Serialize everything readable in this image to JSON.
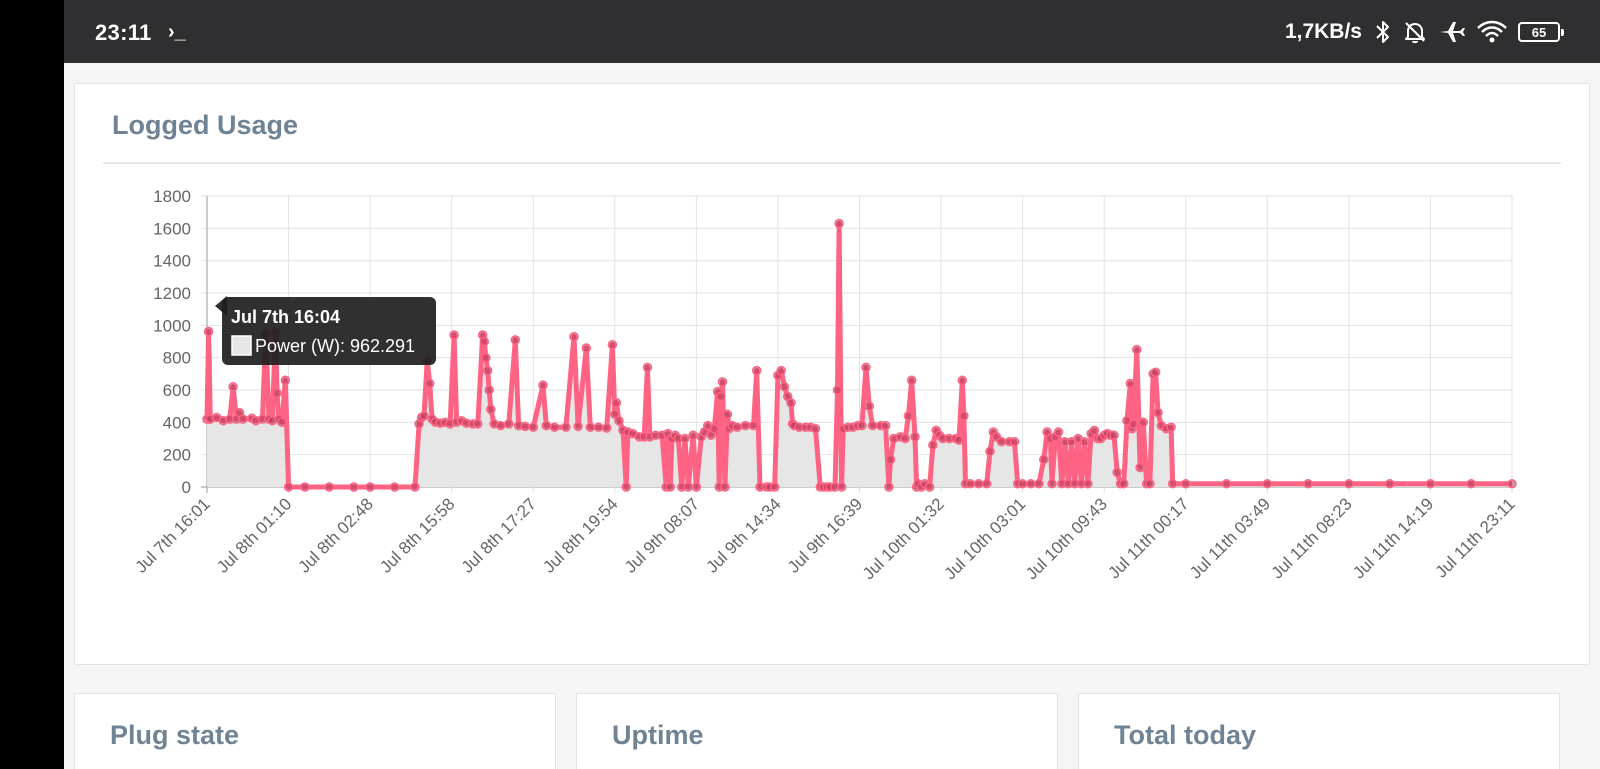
{
  "status_bar": {
    "time": "23:11",
    "prompt_glyph": "›_",
    "net_speed": "1,7KB/s",
    "battery": "65",
    "icons": [
      "bluetooth-icon",
      "notifications-off-icon",
      "airplane-icon",
      "wifi-icon",
      "battery-icon"
    ]
  },
  "cards": {
    "logged_usage": "Logged Usage",
    "plug_state": "Plug state",
    "uptime": "Uptime",
    "total_today": "Total today"
  },
  "tooltip": {
    "title": "Jul 7th 16:04",
    "label": "Power (W): 962.291"
  },
  "colors": {
    "line": "#ff6384",
    "fill": "#e6e6e6",
    "title": "#6f8394",
    "statusbar": "#2f2f31"
  },
  "chart_data": {
    "type": "line",
    "x_ticks": [
      "Jul 7th 16:01",
      "Jul 8th 01:10",
      "Jul 8th 02:48",
      "Jul 8th 15:58",
      "Jul 8th 17:27",
      "Jul 8th 19:54",
      "Jul 9th 08:07",
      "Jul 9th 14:34",
      "Jul 9th 16:39",
      "Jul 10th 01:32",
      "Jul 10th 03:01",
      "Jul 10th 09:43",
      "Jul 11th 00:17",
      "Jul 11th 03:49",
      "Jul 11th 08:23",
      "Jul 11th 14:19",
      "Jul 11th 23:11"
    ],
    "y_ticks": [
      "0",
      "200",
      "400",
      "600",
      "800",
      "1000",
      "1200",
      "1400",
      "1600",
      "1800"
    ],
    "ylim": [
      0,
      1800
    ],
    "grid": true,
    "fill": true,
    "series": [
      {
        "name": "Power (W)",
        "values": [
          [
            0.0,
            420
          ],
          [
            0.02,
            962
          ],
          [
            0.04,
            420
          ],
          [
            0.12,
            430
          ],
          [
            0.2,
            410
          ],
          [
            0.28,
            420
          ],
          [
            0.32,
            620
          ],
          [
            0.36,
            420
          ],
          [
            0.4,
            460
          ],
          [
            0.44,
            420
          ],
          [
            0.55,
            425
          ],
          [
            0.6,
            410
          ],
          [
            0.68,
            420
          ],
          [
            0.72,
            950
          ],
          [
            0.76,
            420
          ],
          [
            0.8,
            410
          ],
          [
            0.84,
            960
          ],
          [
            0.86,
            580
          ],
          [
            0.88,
            420
          ],
          [
            0.92,
            400
          ],
          [
            0.96,
            660
          ],
          [
            1.0,
            0
          ],
          [
            1.2,
            0
          ],
          [
            1.5,
            0
          ],
          [
            1.8,
            0
          ],
          [
            2.0,
            0
          ],
          [
            2.3,
            0
          ],
          [
            2.55,
            0
          ],
          [
            2.6,
            390
          ],
          [
            2.63,
            430
          ],
          [
            2.66,
            440
          ],
          [
            2.7,
            780
          ],
          [
            2.73,
            640
          ],
          [
            2.76,
            420
          ],
          [
            2.8,
            400
          ],
          [
            2.86,
            395
          ],
          [
            2.92,
            400
          ],
          [
            2.98,
            390
          ],
          [
            3.03,
            940
          ],
          [
            3.06,
            400
          ],
          [
            3.12,
            410
          ],
          [
            3.18,
            395
          ],
          [
            3.26,
            390
          ],
          [
            3.32,
            390
          ],
          [
            3.38,
            940
          ],
          [
            3.4,
            900
          ],
          [
            3.42,
            800
          ],
          [
            3.44,
            720
          ],
          [
            3.46,
            600
          ],
          [
            3.48,
            480
          ],
          [
            3.52,
            390
          ],
          [
            3.6,
            380
          ],
          [
            3.7,
            390
          ],
          [
            3.78,
            910
          ],
          [
            3.82,
            380
          ],
          [
            3.9,
            375
          ],
          [
            4.0,
            370
          ],
          [
            4.12,
            630
          ],
          [
            4.16,
            380
          ],
          [
            4.26,
            370
          ],
          [
            4.4,
            370
          ],
          [
            4.5,
            930
          ],
          [
            4.55,
            375
          ],
          [
            4.65,
            860
          ],
          [
            4.7,
            370
          ],
          [
            4.8,
            370
          ],
          [
            4.9,
            365
          ],
          [
            4.97,
            880
          ],
          [
            5.0,
            450
          ],
          [
            5.02,
            520
          ],
          [
            5.05,
            410
          ],
          [
            5.1,
            350
          ],
          [
            5.14,
            0
          ],
          [
            5.16,
            340
          ],
          [
            5.22,
            330
          ],
          [
            5.3,
            310
          ],
          [
            5.36,
            310
          ],
          [
            5.4,
            740
          ],
          [
            5.43,
            310
          ],
          [
            5.5,
            320
          ],
          [
            5.58,
            320
          ],
          [
            5.63,
            0
          ],
          [
            5.65,
            330
          ],
          [
            5.68,
            0
          ],
          [
            5.7,
            300
          ],
          [
            5.74,
            320
          ],
          [
            5.78,
            300
          ],
          [
            5.82,
            0
          ],
          [
            5.86,
            300
          ],
          [
            5.9,
            0
          ],
          [
            5.96,
            320
          ],
          [
            6.0,
            0
          ],
          [
            6.06,
            310
          ],
          [
            6.1,
            340
          ],
          [
            6.14,
            380
          ],
          [
            6.18,
            320
          ],
          [
            6.22,
            360
          ],
          [
            6.26,
            590
          ],
          [
            6.28,
            0
          ],
          [
            6.3,
            560
          ],
          [
            6.32,
            650
          ],
          [
            6.35,
            0
          ],
          [
            6.38,
            450
          ],
          [
            6.4,
            360
          ],
          [
            6.44,
            380
          ],
          [
            6.5,
            370
          ],
          [
            6.6,
            380
          ],
          [
            6.7,
            380
          ],
          [
            6.74,
            720
          ],
          [
            6.78,
            0
          ],
          [
            6.86,
            0
          ],
          [
            6.9,
            0
          ],
          [
            6.96,
            0
          ],
          [
            7.0,
            690
          ],
          [
            7.04,
            720
          ],
          [
            7.08,
            620
          ],
          [
            7.12,
            560
          ],
          [
            7.16,
            520
          ],
          [
            7.18,
            390
          ],
          [
            7.2,
            380
          ],
          [
            7.26,
            370
          ],
          [
            7.34,
            370
          ],
          [
            7.4,
            370
          ],
          [
            7.46,
            360
          ],
          [
            7.52,
            0
          ],
          [
            7.56,
            0
          ],
          [
            7.6,
            0
          ],
          [
            7.64,
            0
          ],
          [
            7.7,
            0
          ],
          [
            7.73,
            600
          ],
          [
            7.75,
            1630
          ],
          [
            7.78,
            0
          ],
          [
            7.8,
            360
          ],
          [
            7.86,
            370
          ],
          [
            7.92,
            370
          ],
          [
            7.98,
            380
          ],
          [
            8.03,
            380
          ],
          [
            8.08,
            740
          ],
          [
            8.12,
            500
          ],
          [
            8.16,
            380
          ],
          [
            8.26,
            380
          ],
          [
            8.32,
            380
          ],
          [
            8.36,
            0
          ],
          [
            8.38,
            170
          ],
          [
            8.42,
            300
          ],
          [
            8.5,
            310
          ],
          [
            8.56,
            300
          ],
          [
            8.6,
            440
          ],
          [
            8.64,
            660
          ],
          [
            8.68,
            310
          ],
          [
            8.7,
            0
          ],
          [
            8.72,
            20
          ],
          [
            8.76,
            0
          ],
          [
            8.8,
            20
          ],
          [
            8.86,
            0
          ],
          [
            8.9,
            260
          ],
          [
            8.94,
            350
          ],
          [
            8.98,
            320
          ],
          [
            9.02,
            300
          ],
          [
            9.1,
            300
          ],
          [
            9.18,
            300
          ],
          [
            9.22,
            290
          ],
          [
            9.26,
            660
          ],
          [
            9.28,
            440
          ],
          [
            9.3,
            20
          ],
          [
            9.36,
            20
          ],
          [
            9.46,
            20
          ],
          [
            9.56,
            20
          ],
          [
            9.6,
            220
          ],
          [
            9.64,
            340
          ],
          [
            9.68,
            310
          ],
          [
            9.74,
            280
          ],
          [
            9.84,
            280
          ],
          [
            9.9,
            280
          ],
          [
            9.94,
            20
          ],
          [
            10.0,
            20
          ],
          [
            10.1,
            20
          ],
          [
            10.2,
            20
          ],
          [
            10.26,
            170
          ],
          [
            10.3,
            340
          ],
          [
            10.34,
            300
          ],
          [
            10.36,
            20
          ],
          [
            10.4,
            310
          ],
          [
            10.44,
            340
          ],
          [
            10.48,
            20
          ],
          [
            10.52,
            280
          ],
          [
            10.56,
            20
          ],
          [
            10.6,
            280
          ],
          [
            10.64,
            20
          ],
          [
            10.68,
            300
          ],
          [
            10.72,
            20
          ],
          [
            10.76,
            280
          ],
          [
            10.8,
            20
          ],
          [
            10.84,
            330
          ],
          [
            10.88,
            350
          ],
          [
            10.92,
            300
          ],
          [
            10.96,
            300
          ],
          [
            11.0,
            320
          ],
          [
            11.04,
            330
          ],
          [
            11.08,
            320
          ],
          [
            11.12,
            320
          ],
          [
            11.16,
            90
          ],
          [
            11.2,
            20
          ],
          [
            11.24,
            20
          ],
          [
            11.28,
            410
          ],
          [
            11.32,
            640
          ],
          [
            11.34,
            360
          ],
          [
            11.36,
            390
          ],
          [
            11.4,
            850
          ],
          [
            11.44,
            120
          ],
          [
            11.48,
            400
          ],
          [
            11.52,
            20
          ],
          [
            11.56,
            20
          ],
          [
            11.6,
            700
          ],
          [
            11.63,
            710
          ],
          [
            11.66,
            460
          ],
          [
            11.7,
            380
          ],
          [
            11.76,
            360
          ],
          [
            11.82,
            370
          ],
          [
            11.84,
            20
          ],
          [
            12.0,
            20
          ],
          [
            12.5,
            20
          ],
          [
            13.0,
            20
          ],
          [
            13.5,
            20
          ],
          [
            14.0,
            20
          ],
          [
            14.5,
            20
          ],
          [
            15.0,
            20
          ],
          [
            15.5,
            20
          ],
          [
            16.0,
            20
          ]
        ]
      }
    ]
  }
}
